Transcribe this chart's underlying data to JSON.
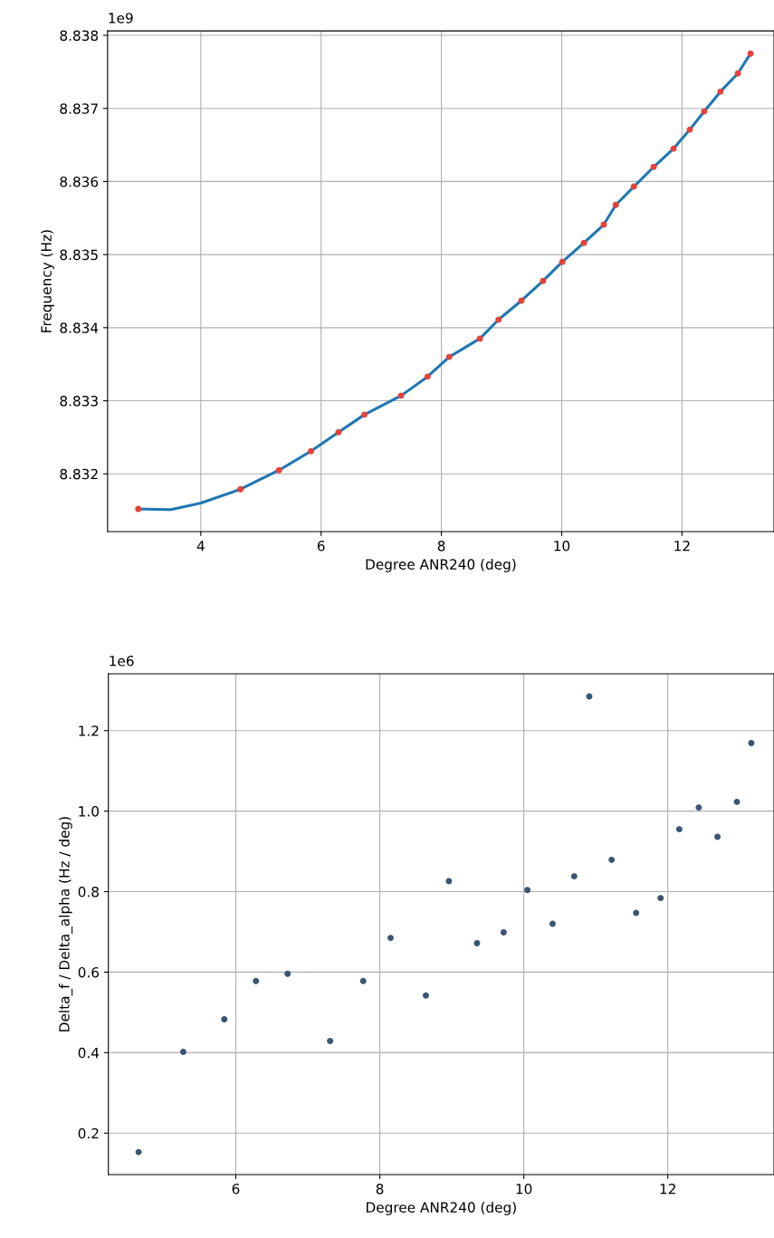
{
  "chart_data": [
    {
      "type": "line",
      "xlabel": "Degree ANR240 (deg)",
      "ylabel": "Frequency (Hz)",
      "annotations": [
        "1e9"
      ],
      "grid": true,
      "legend": false,
      "xlim": [
        2.45,
        13.53
      ],
      "xticks": [
        4,
        6,
        8,
        10,
        12
      ],
      "ylim": [
        8.83121,
        8.83806
      ],
      "yticks": [
        8.832,
        8.833,
        8.834,
        8.835,
        8.836,
        8.837,
        8.838
      ],
      "series": [
        {
          "type": "line",
          "color": "#1f77b4",
          "marker": "none",
          "x": [
            2.96,
            3.5,
            4.0,
            4.66,
            5.3,
            5.83,
            6.29,
            6.72,
            7.33,
            7.77,
            8.13,
            8.64,
            8.95,
            9.33,
            9.69,
            10.01,
            10.37,
            10.7,
            10.9,
            11.2,
            11.53,
            11.86,
            12.13,
            12.37,
            12.64,
            12.93,
            13.14
          ],
          "values": [
            8.83152,
            8.83151,
            8.8316,
            8.83179,
            8.83205,
            8.83231,
            8.83257,
            8.83281,
            8.83307,
            8.83333,
            8.8336,
            8.83385,
            8.83411,
            8.83437,
            8.83464,
            8.8349,
            8.83516,
            8.83541,
            8.83568,
            8.83593,
            8.8362,
            8.83645,
            8.83671,
            8.83696,
            8.83723,
            8.83748,
            8.83775
          ]
        },
        {
          "type": "scatter",
          "color": "#e8413a",
          "marker": "circle",
          "x": [
            2.96,
            4.66,
            5.3,
            5.83,
            6.29,
            6.72,
            7.33,
            7.77,
            8.13,
            8.64,
            8.95,
            9.33,
            9.69,
            10.01,
            10.37,
            10.7,
            10.9,
            11.2,
            11.53,
            11.86,
            12.13,
            12.37,
            12.64,
            12.93,
            13.14
          ],
          "values": [
            8.83152,
            8.83179,
            8.83205,
            8.83231,
            8.83257,
            8.83281,
            8.83307,
            8.83333,
            8.8336,
            8.83385,
            8.83411,
            8.83437,
            8.83464,
            8.8349,
            8.83516,
            8.83541,
            8.83568,
            8.83593,
            8.8362,
            8.83645,
            8.83671,
            8.83696,
            8.83723,
            8.83748,
            8.83775
          ]
        }
      ]
    },
    {
      "type": "scatter",
      "xlabel": "Degree ANR240 (deg)",
      "ylabel": "Delta_f / Delta_alpha (Hz / deg)",
      "annotations": [
        "1e6"
      ],
      "grid": true,
      "legend": false,
      "marker": "circle",
      "xlim": [
        4.23,
        13.475
      ],
      "xticks": [
        6,
        8,
        10,
        12
      ],
      "ylim": [
        0.097,
        1.341
      ],
      "yticks": [
        0.2,
        0.4,
        0.6,
        0.8,
        {
          "value": 1,
          "label": "1.0"
        },
        1.2
      ],
      "series": [
        {
          "color": "#3a5670",
          "x": [
            4.65,
            5.27,
            5.84,
            6.28,
            6.72,
            7.31,
            7.77,
            8.15,
            8.64,
            8.96,
            9.35,
            9.72,
            10.05,
            10.4,
            10.7,
            10.91,
            11.22,
            11.56,
            11.9,
            12.16,
            12.43,
            12.69,
            12.96,
            13.16
          ],
          "values": [
            0.153,
            0.402,
            0.483,
            0.578,
            0.596,
            0.429,
            0.578,
            0.685,
            0.542,
            0.826,
            0.672,
            0.699,
            0.804,
            0.72,
            0.838,
            1.285,
            0.879,
            0.747,
            0.784,
            0.955,
            1.009,
            0.936,
            1.023,
            1.169
          ]
        }
      ]
    }
  ]
}
